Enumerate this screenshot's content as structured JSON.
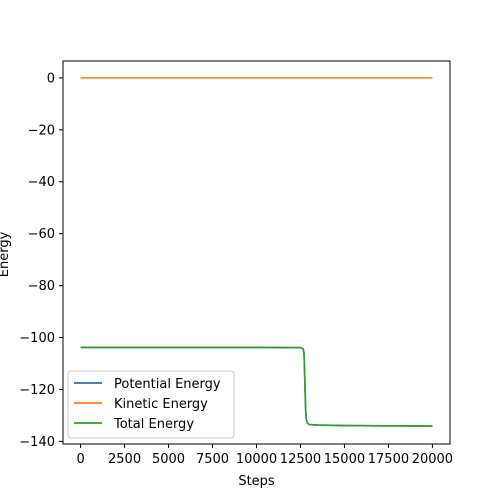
{
  "chart_data": {
    "type": "line",
    "title": "",
    "xlabel": "Steps",
    "ylabel": "Energy",
    "xlim": [
      -1000,
      21000
    ],
    "ylim": [
      -141,
      6.5
    ],
    "xticks": [
      0,
      2500,
      5000,
      7500,
      10000,
      12500,
      15000,
      17500,
      20000
    ],
    "yticks": [
      0,
      -20,
      -40,
      -60,
      -80,
      -100,
      -120,
      -140
    ],
    "grid": false,
    "legend_position": "lower-left",
    "series": [
      {
        "name": "Potential Energy",
        "color": "#1f77b4",
        "x": [
          0,
          5000,
          10000,
          12500,
          12650,
          12700,
          12730,
          12760,
          12790,
          12830,
          12900,
          13000,
          13500,
          15000,
          17500,
          20000
        ],
        "y": [
          -103.8,
          -103.8,
          -103.8,
          -103.9,
          -104.3,
          -106.0,
          -112.0,
          -120.0,
          -127.0,
          -131.5,
          -133.0,
          -133.5,
          -133.7,
          -133.9,
          -134.0,
          -134.1
        ]
      },
      {
        "name": "Kinetic Energy",
        "color": "#ff7f0e",
        "x": [
          0,
          5000,
          10000,
          15000,
          20000
        ],
        "y": [
          0,
          0,
          0,
          0,
          0
        ]
      },
      {
        "name": "Total Energy",
        "color": "#2ca02c",
        "x": [
          0,
          5000,
          10000,
          12500,
          12650,
          12700,
          12730,
          12760,
          12790,
          12830,
          12900,
          13000,
          13500,
          15000,
          17500,
          20000
        ],
        "y": [
          -103.8,
          -103.8,
          -103.8,
          -103.9,
          -104.3,
          -106.0,
          -112.0,
          -120.0,
          -127.0,
          -131.5,
          -133.0,
          -133.5,
          -133.7,
          -133.9,
          -134.0,
          -134.1
        ]
      }
    ]
  }
}
